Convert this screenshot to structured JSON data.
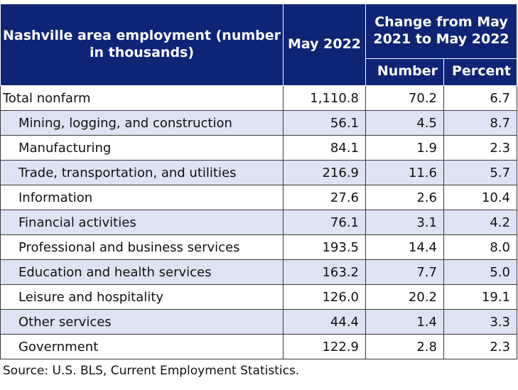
{
  "table": {
    "header": {
      "title": "Nashville area employment (number in thousands)",
      "period": "May 2022",
      "change_group": "Change from May 2021 to May 2022",
      "number": "Number",
      "percent": "Percent"
    },
    "rows": [
      {
        "label": "Total nonfarm",
        "may2022": "1,110.8",
        "number": "70.2",
        "percent": "6.7"
      },
      {
        "label": "Mining, logging, and construction",
        "may2022": "56.1",
        "number": "4.5",
        "percent": "8.7"
      },
      {
        "label": "Manufacturing",
        "may2022": "84.1",
        "number": "1.9",
        "percent": "2.3"
      },
      {
        "label": "Trade, transportation, and utilities",
        "may2022": "216.9",
        "number": "11.6",
        "percent": "5.7"
      },
      {
        "label": "Information",
        "may2022": "27.6",
        "number": "2.6",
        "percent": "10.4"
      },
      {
        "label": "Financial activities",
        "may2022": "76.1",
        "number": "3.1",
        "percent": "4.2"
      },
      {
        "label": "Professional and business services",
        "may2022": "193.5",
        "number": "14.4",
        "percent": "8.0"
      },
      {
        "label": "Education and health services",
        "may2022": "163.2",
        "number": "7.7",
        "percent": "5.0"
      },
      {
        "label": "Leisure and hospitality",
        "may2022": "126.0",
        "number": "20.2",
        "percent": "19.1"
      },
      {
        "label": "Other services",
        "may2022": "44.4",
        "number": "1.4",
        "percent": "3.3"
      },
      {
        "label": "Government",
        "may2022": "122.9",
        "number": "2.8",
        "percent": "2.3"
      }
    ],
    "source": "Source: U.S. BLS, Current Employment Statistics."
  }
}
